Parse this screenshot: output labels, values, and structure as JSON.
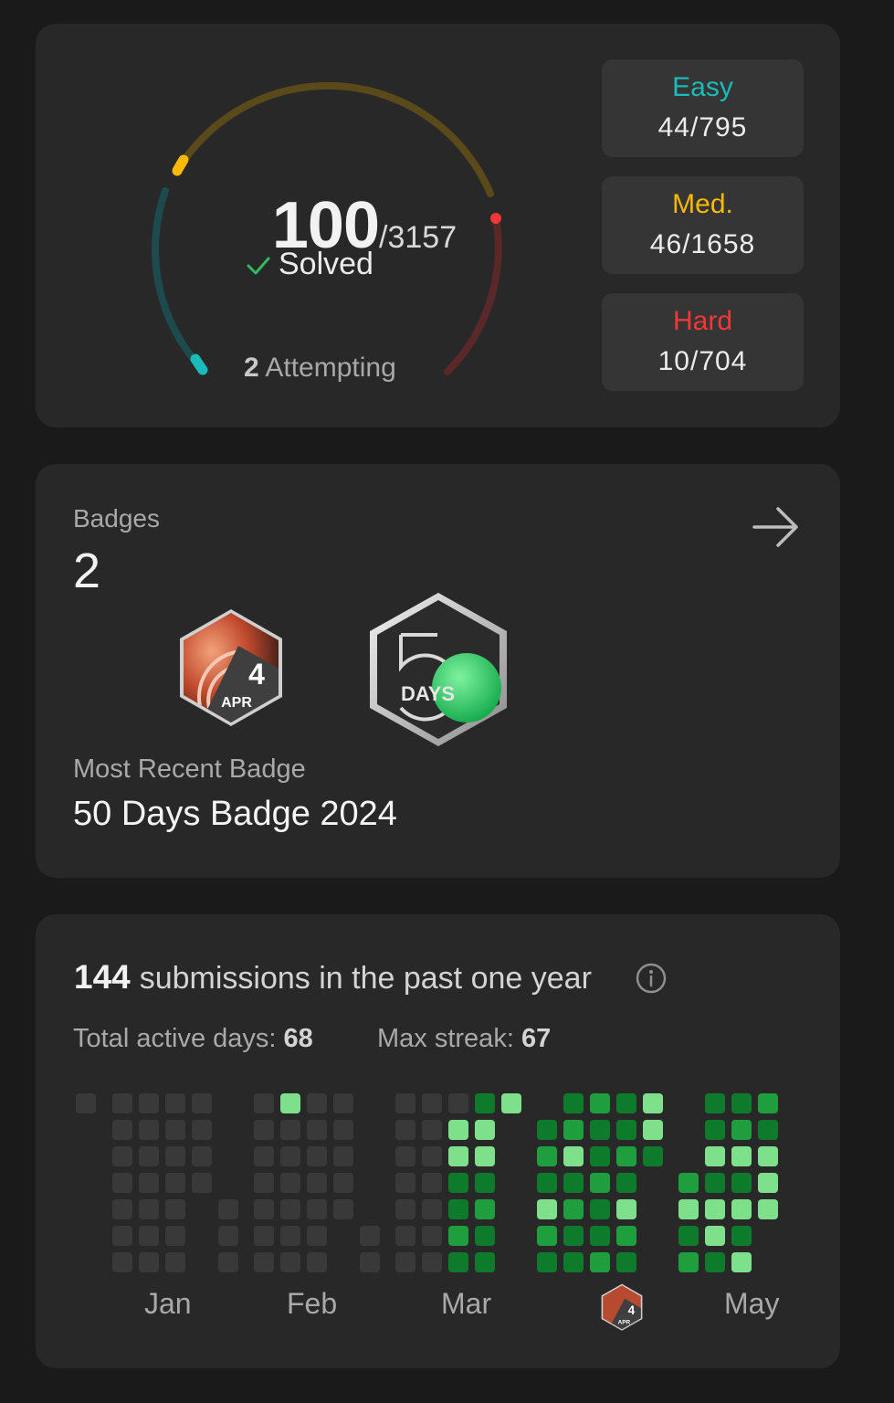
{
  "progress": {
    "solved": "100",
    "total": "/3157",
    "solved_label": "Solved",
    "attempting_count": "2",
    "attempting_label": "Attempting",
    "difficulties": [
      {
        "label": "Easy",
        "value": "44/795",
        "color": "#1cbbba"
      },
      {
        "label": "Med.",
        "value": "46/1658",
        "color": "#ffb800"
      },
      {
        "label": "Hard",
        "value": "10/704",
        "color": "#f63737"
      }
    ]
  },
  "badges": {
    "label": "Badges",
    "count": "2",
    "items": [
      {
        "name": "Apr 2024 badge",
        "number": "4",
        "month": "APR"
      },
      {
        "name": "50 Days Badge 2024",
        "text": "DAYS"
      }
    ],
    "recent_label": "Most Recent Badge",
    "recent_name": "50 Days Badge 2024"
  },
  "calendar": {
    "submissions": "144",
    "submissions_label": "submissions in the past one year",
    "active_label": "Total active days:",
    "active_days": "68",
    "streak_label": "Max streak:",
    "max_streak": "67",
    "months": [
      "Jan",
      "Feb",
      "Mar",
      "",
      "May"
    ],
    "month_badge": {
      "number": "4",
      "month": "APR"
    },
    "levels": [
      [
        1,
        0,
        0,
        0,
        0,
        0,
        0
      ],
      [
        1,
        1,
        1,
        1,
        1,
        1,
        1
      ],
      [
        1,
        1,
        1,
        1,
        1,
        1,
        1
      ],
      [
        1,
        1,
        1,
        1,
        1,
        1,
        1
      ],
      [
        1,
        1,
        1,
        1,
        0,
        0,
        0
      ],
      [
        0,
        0,
        0,
        0,
        1,
        1,
        1
      ],
      [
        1,
        1,
        1,
        1,
        1,
        1,
        1
      ],
      [
        3,
        1,
        1,
        1,
        1,
        1,
        1
      ],
      [
        1,
        1,
        1,
        1,
        1,
        1,
        1
      ],
      [
        1,
        1,
        1,
        1,
        1,
        0,
        0
      ],
      [
        0,
        0,
        0,
        0,
        0,
        1,
        1
      ],
      [
        1,
        1,
        1,
        1,
        1,
        1,
        1
      ],
      [
        1,
        1,
        1,
        1,
        1,
        1,
        1
      ],
      [
        1,
        3,
        3,
        2,
        2,
        2,
        2
      ],
      [
        2,
        3,
        3,
        2,
        2,
        2,
        2
      ],
      [
        3,
        0,
        0,
        0,
        0,
        0,
        0
      ],
      [
        0,
        2,
        2,
        2,
        3,
        2,
        2
      ],
      [
        2,
        2,
        3,
        2,
        2,
        2,
        2
      ],
      [
        2,
        2,
        2,
        2,
        2,
        2,
        2
      ],
      [
        2,
        2,
        2,
        2,
        3,
        2,
        2
      ],
      [
        3,
        3,
        2,
        0,
        0,
        0,
        0
      ],
      [
        0,
        0,
        0,
        2,
        3,
        2,
        2
      ],
      [
        2,
        2,
        3,
        2,
        3,
        3,
        2
      ],
      [
        2,
        2,
        3,
        2,
        3,
        2,
        3
      ],
      [
        2,
        2,
        3,
        3,
        3,
        0,
        0
      ]
    ],
    "colors": {
      "level0": "#282828",
      "level1": "#393939",
      "level2": "#0e7b2c",
      "level3": "#1f9e3e",
      "level4": "#7fe08c"
    }
  }
}
